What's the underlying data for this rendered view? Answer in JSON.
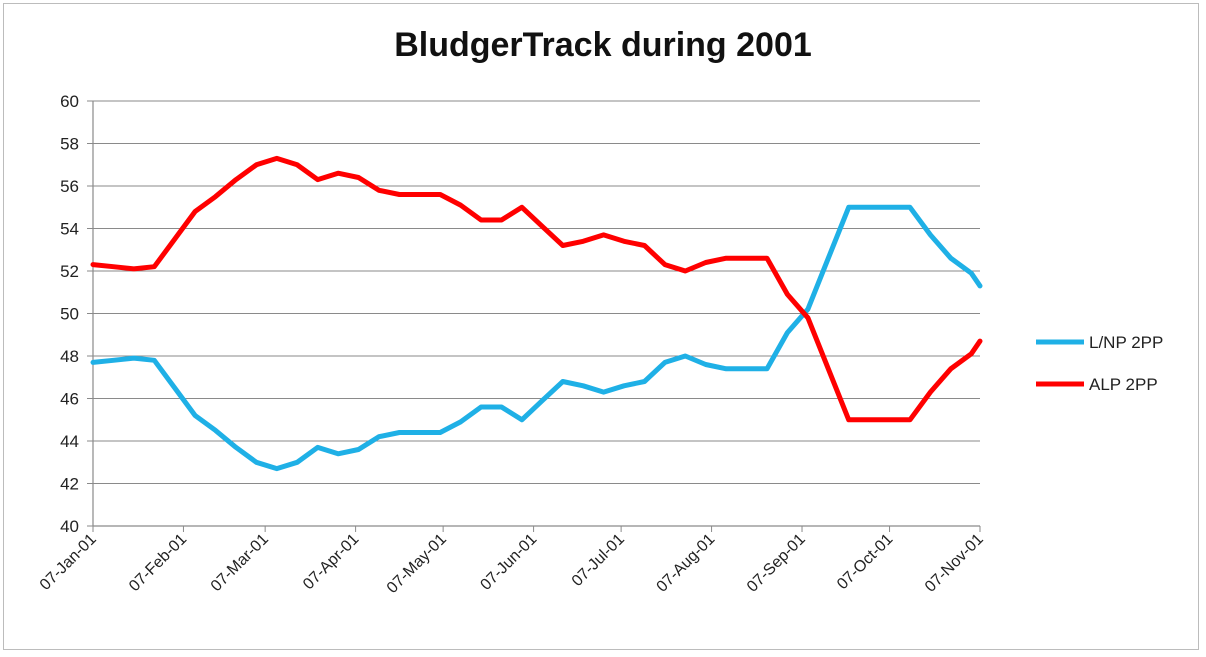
{
  "chart_data": {
    "type": "line",
    "title": "BludgerTrack during 2001",
    "xlabel": "",
    "ylabel": "",
    "ylim": [
      40,
      60
    ],
    "yticks": [
      "40",
      "42",
      "44",
      "46",
      "48",
      "50",
      "52",
      "54",
      "56",
      "58",
      "60"
    ],
    "x_tick_labels": [
      "07-Jan-01",
      "07-Feb-01",
      "07-Mar-01",
      "07-Apr-01",
      "07-May-01",
      "07-Jun-01",
      "07-Jul-01",
      "07-Aug-01",
      "07-Sep-01",
      "07-Oct-01",
      "07-Nov-01"
    ],
    "xlim": [
      "2001-01-07",
      "2001-11-07"
    ],
    "grid": true,
    "legend_position": "right",
    "x": [
      "2001-01-07",
      "2001-01-14",
      "2001-01-21",
      "2001-01-28",
      "2001-02-04",
      "2001-02-11",
      "2001-02-18",
      "2001-02-25",
      "2001-03-04",
      "2001-03-11",
      "2001-03-18",
      "2001-03-25",
      "2001-04-01",
      "2001-04-08",
      "2001-04-15",
      "2001-04-22",
      "2001-04-29",
      "2001-05-06",
      "2001-05-13",
      "2001-05-20",
      "2001-05-27",
      "2001-06-03",
      "2001-06-10",
      "2001-06-17",
      "2001-06-24",
      "2001-07-01",
      "2001-07-08",
      "2001-07-15",
      "2001-07-22",
      "2001-07-29",
      "2001-08-05",
      "2001-08-12",
      "2001-08-19",
      "2001-08-26",
      "2001-09-02",
      "2001-09-09",
      "2001-09-16",
      "2001-09-23",
      "2001-09-30",
      "2001-10-07",
      "2001-10-14",
      "2001-10-21",
      "2001-10-28",
      "2001-11-04",
      "2001-11-07"
    ],
    "series": [
      {
        "name": "L/NP 2PP",
        "color": "#1fb0e6",
        "values": [
          47.7,
          47.8,
          47.9,
          47.8,
          46.5,
          45.2,
          44.5,
          43.7,
          43.0,
          42.7,
          43.0,
          43.7,
          43.4,
          43.6,
          44.2,
          44.4,
          44.4,
          44.4,
          44.9,
          45.6,
          45.6,
          45.0,
          45.9,
          46.8,
          46.6,
          46.3,
          46.6,
          46.8,
          47.7,
          48.0,
          47.6,
          47.4,
          47.4,
          47.4,
          49.1,
          50.2,
          52.6,
          55.0,
          55.0,
          55.0,
          55.0,
          53.7,
          52.6,
          51.9,
          51.3
        ]
      },
      {
        "name": "ALP 2PP",
        "color": "#ff0000",
        "values": [
          52.3,
          52.2,
          52.1,
          52.2,
          53.5,
          54.8,
          55.5,
          56.3,
          57.0,
          57.3,
          57.0,
          56.3,
          56.6,
          56.4,
          55.8,
          55.6,
          55.6,
          55.6,
          55.1,
          54.4,
          54.4,
          55.0,
          54.1,
          53.2,
          53.4,
          53.7,
          53.4,
          53.2,
          52.3,
          52.0,
          52.4,
          52.6,
          52.6,
          52.6,
          50.9,
          49.8,
          47.4,
          45.0,
          45.0,
          45.0,
          45.0,
          46.3,
          47.4,
          48.1,
          48.7
        ]
      }
    ]
  }
}
